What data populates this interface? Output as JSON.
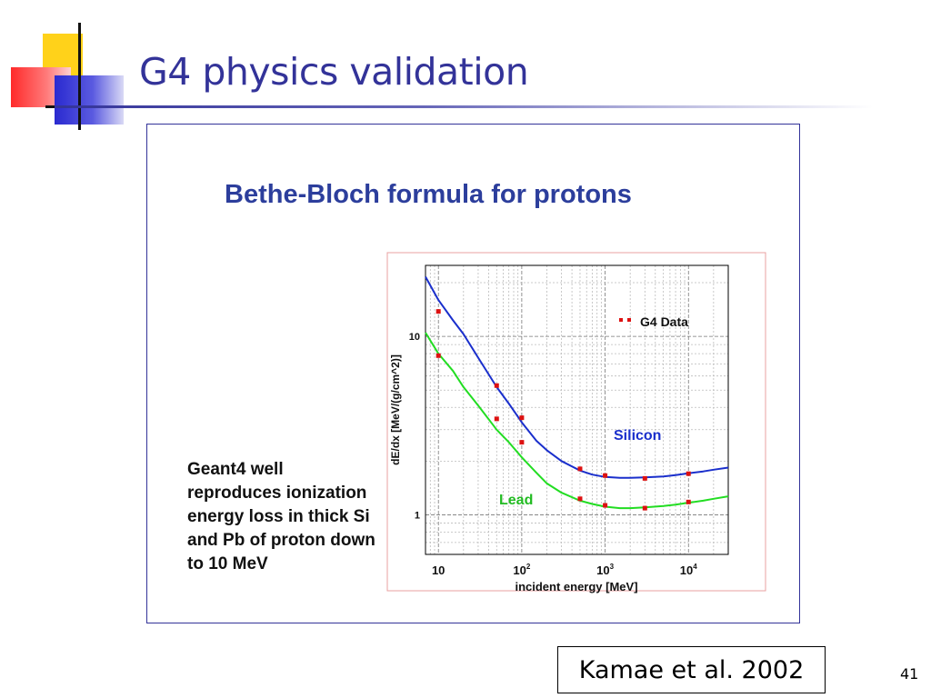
{
  "slide": {
    "title": "G4 physics validation",
    "figure_title": "Bethe-Bloch formula for protons",
    "note_lines": [
      "Geant4 well",
      "reproduces ionization",
      "energy loss in thick Si",
      "and Pb of proton down",
      "to 10 MeV"
    ],
    "citation": "Kamae et al. 2002",
    "page_number": "41"
  },
  "colors": {
    "title": "#333399",
    "silicon_curve": "#1a2fcc",
    "lead_curve": "#22dd22",
    "data_points": "#dd1111",
    "silicon_label": "#1a2fcc",
    "lead_label": "#22bb22"
  },
  "chart_data": {
    "type": "line",
    "title": "Bethe-Bloch formula for protons",
    "xlabel": "incident energy [MeV]",
    "ylabel": "dE/dx [MeV/(g/cm^2)]",
    "x_scale": "log",
    "y_scale": "log",
    "xlim": [
      7,
      30000
    ],
    "ylim": [
      0.6,
      25
    ],
    "grid": true,
    "x_ticks": [
      {
        "value": 10,
        "label": "10",
        "sup": ""
      },
      {
        "value": 100,
        "label": "10",
        "sup": "2"
      },
      {
        "value": 1000,
        "label": "10",
        "sup": "3"
      },
      {
        "value": 10000,
        "label": "10",
        "sup": "4"
      }
    ],
    "y_ticks": [
      {
        "value": 1,
        "label": "1"
      },
      {
        "value": 10,
        "label": "10"
      }
    ],
    "legend": {
      "label": "G4 Data",
      "position": "top-right"
    },
    "annotations": [
      {
        "text": "Silicon",
        "x": 1100,
        "y": 2.05
      },
      {
        "text": "Lead",
        "x": 55,
        "y": 1.25
      }
    ],
    "series": [
      {
        "name": "Silicon",
        "curve": {
          "x": [
            7,
            10,
            15,
            20,
            30,
            50,
            70,
            100,
            150,
            200,
            300,
            500,
            700,
            1000,
            1500,
            2000,
            3000,
            5000,
            7000,
            10000,
            15000,
            20000,
            30000
          ],
          "y": [
            21.6,
            16.0,
            12.3,
            10.3,
            7.6,
            5.2,
            4.2,
            3.3,
            2.6,
            2.3,
            2.0,
            1.77,
            1.68,
            1.63,
            1.61,
            1.61,
            1.62,
            1.64,
            1.67,
            1.71,
            1.75,
            1.79,
            1.84
          ]
        },
        "points": {
          "x": [
            10,
            50,
            100,
            500,
            1000,
            3000,
            10000
          ],
          "y": [
            13.8,
            5.3,
            3.5,
            1.81,
            1.66,
            1.6,
            1.7
          ]
        }
      },
      {
        "name": "Lead",
        "curve": {
          "x": [
            7,
            10,
            15,
            20,
            30,
            50,
            70,
            100,
            150,
            200,
            300,
            500,
            700,
            1000,
            1500,
            2000,
            3000,
            5000,
            7000,
            10000,
            15000,
            20000,
            30000
          ],
          "y": [
            10.5,
            8.0,
            6.4,
            5.2,
            4.1,
            3.0,
            2.55,
            2.1,
            1.72,
            1.5,
            1.33,
            1.2,
            1.15,
            1.11,
            1.09,
            1.09,
            1.1,
            1.12,
            1.14,
            1.17,
            1.2,
            1.23,
            1.27
          ]
        },
        "points": {
          "x": [
            10,
            50,
            100,
            500,
            1000,
            3000,
            10000
          ],
          "y": [
            7.8,
            3.45,
            2.55,
            1.23,
            1.13,
            1.09,
            1.18
          ]
        }
      }
    ]
  }
}
